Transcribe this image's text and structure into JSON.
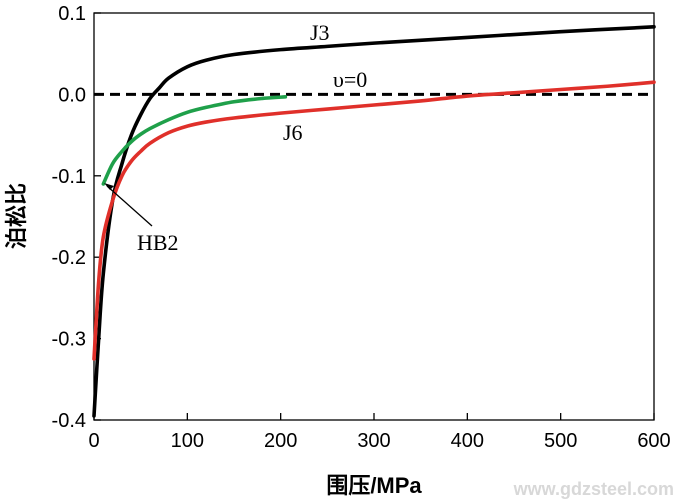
{
  "chart_data": {
    "type": "line",
    "title": "",
    "xlabel": "围压/MPa",
    "ylabel": "泊松比",
    "xlim": [
      0,
      600
    ],
    "ylim": [
      -0.4,
      0.1
    ],
    "xticks": [
      0,
      100,
      200,
      300,
      400,
      500,
      600
    ],
    "yticks": [
      -0.4,
      -0.3,
      -0.2,
      -0.1,
      0.0,
      0.1
    ],
    "xtick_labels": [
      "0",
      "100",
      "200",
      "300",
      "400",
      "500",
      "600"
    ],
    "ytick_labels": [
      "-0.4",
      "-0.3",
      "-0.2",
      "-0.1",
      "0.0",
      "0.1"
    ],
    "grid": false,
    "legend": "none",
    "series": [
      {
        "name": "J3",
        "color": "#000000",
        "x": [
          0,
          5,
          10,
          20,
          30,
          40,
          50,
          60,
          70,
          80,
          100,
          120,
          150,
          200,
          250,
          300,
          400,
          500,
          600
        ],
        "y": [
          -0.395,
          -0.3,
          -0.22,
          -0.13,
          -0.085,
          -0.05,
          -0.025,
          -0.005,
          0.008,
          0.02,
          0.034,
          0.042,
          0.049,
          0.055,
          0.059,
          0.063,
          0.07,
          0.077,
          0.083
        ]
      },
      {
        "name": "J6",
        "color": "#e0302a",
        "x": [
          0,
          5,
          10,
          20,
          30,
          40,
          50,
          60,
          80,
          100,
          120,
          150,
          200,
          250,
          300,
          350,
          400,
          450,
          500,
          550,
          600
        ],
        "y": [
          -0.325,
          -0.23,
          -0.175,
          -0.13,
          -0.1,
          -0.082,
          -0.07,
          -0.06,
          -0.047,
          -0.039,
          -0.034,
          -0.029,
          -0.023,
          -0.018,
          -0.013,
          -0.008,
          -0.002,
          0.002,
          0.006,
          0.01,
          0.015
        ]
      },
      {
        "name": "HB2",
        "color": "#1fa04a",
        "x": [
          10,
          20,
          30,
          40,
          50,
          60,
          80,
          100,
          120,
          150,
          180,
          205
        ],
        "y": [
          -0.11,
          -0.085,
          -0.07,
          -0.058,
          -0.049,
          -0.042,
          -0.031,
          -0.022,
          -0.016,
          -0.009,
          -0.005,
          -0.003
        ]
      },
      {
        "name": "υ=0",
        "color": "#000000",
        "dashed": true,
        "x": [
          0,
          600
        ],
        "y": [
          0,
          0
        ]
      }
    ],
    "annotations": [
      {
        "text": "J3",
        "series": "J3"
      },
      {
        "text": "υ=0",
        "series": "υ=0"
      },
      {
        "text": "J6",
        "series": "J6"
      },
      {
        "text": "HB2",
        "series": "HB2"
      }
    ]
  },
  "watermark": "www.gdzsteel.com"
}
